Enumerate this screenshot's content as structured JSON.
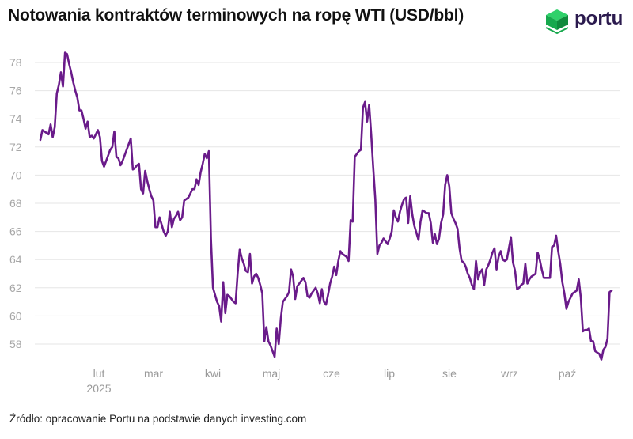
{
  "title": "Notowania kontraktów terminowych na ropę WTI (USD/bbl)",
  "brand": {
    "name": "portu",
    "icon": "green-isometric-cube-logo",
    "colors": [
      "#2fd16a",
      "#17a84d",
      "#0f8a3c"
    ]
  },
  "source_note": "Źródło: opracowanie Portu na podstawie danych investing.com",
  "chart_data": {
    "type": "line",
    "title": "Notowania kontraktów terminowych na ropę WTI (USD/bbl)",
    "xlabel": "",
    "ylabel": "",
    "ylim": [
      57,
      80
    ],
    "yticks": [
      58,
      60,
      62,
      64,
      66,
      68,
      70,
      72,
      74,
      76,
      78
    ],
    "grid": true,
    "line_color": "#6a1b8a",
    "x_tick_labels": [
      "lut",
      "mar",
      "kwi",
      "maj",
      "cze",
      "lip",
      "sie",
      "wrz",
      "paź"
    ],
    "x_year_label": "2025",
    "series": [
      {
        "values": [
          72.5,
          73.2,
          73.1,
          73.0,
          72.9,
          73.6,
          72.7,
          73.4,
          75.8,
          76.4,
          77.3,
          76.3,
          78.7,
          78.6,
          77.9,
          77.3,
          76.6,
          76.0,
          75.5,
          74.6,
          74.6,
          74.0,
          73.3,
          73.8,
          72.7,
          72.8,
          72.6,
          72.9,
          73.2,
          72.7,
          71.0,
          70.6,
          71.0,
          71.4,
          71.8,
          72.0,
          73.1,
          71.3,
          71.2,
          70.7,
          71.0,
          71.4,
          71.8,
          72.2,
          72.6,
          70.4,
          70.5,
          70.7,
          70.8,
          69.0,
          68.7,
          70.3,
          69.6,
          69.0,
          68.5,
          68.2,
          66.3,
          66.3,
          67.0,
          66.5,
          66.0,
          65.7,
          66.0,
          67.4,
          66.3,
          66.9,
          67.1,
          67.4,
          66.8,
          67.0,
          68.2,
          68.3,
          68.4,
          68.7,
          69.0,
          69.0,
          69.7,
          69.3,
          70.2,
          70.8,
          71.5,
          71.2,
          71.7,
          65.5,
          62.0,
          61.5,
          61.0,
          60.7,
          59.6,
          62.4,
          60.2,
          61.5,
          61.4,
          61.2,
          61.0,
          60.9,
          63.0,
          64.7,
          64.1,
          63.7,
          63.2,
          63.1,
          64.4,
          62.3,
          62.8,
          63.0,
          62.7,
          62.2,
          61.6,
          58.2,
          59.2,
          58.2,
          57.9,
          57.5,
          57.1,
          59.1,
          58.0,
          59.8,
          61.0,
          61.2,
          61.4,
          61.7,
          63.3,
          62.8,
          61.2,
          62.1,
          62.3,
          62.5,
          62.7,
          62.4,
          61.4,
          61.3,
          61.6,
          61.8,
          62.0,
          61.6,
          60.9,
          61.9,
          61.0,
          60.8,
          61.5,
          62.3,
          62.8,
          63.5,
          62.9,
          63.9,
          64.6,
          64.4,
          64.3,
          64.2,
          63.9,
          66.8,
          66.7,
          71.3,
          71.5,
          71.7,
          71.8,
          74.8,
          75.2,
          73.8,
          75.0,
          72.9,
          70.5,
          68.3,
          64.4,
          65.0,
          65.2,
          65.5,
          65.3,
          65.1,
          65.5,
          66.0,
          67.5,
          67.0,
          66.7,
          67.4,
          67.9,
          68.3,
          68.4,
          66.6,
          68.5,
          67.2,
          66.4,
          65.9,
          65.4,
          66.7,
          67.5,
          67.4,
          67.3,
          67.3,
          66.6,
          65.2,
          65.8,
          65.1,
          65.5,
          66.6,
          67.2,
          69.3,
          70.0,
          69.2,
          67.3,
          66.9,
          66.6,
          66.2,
          64.8,
          63.9,
          63.8,
          63.5,
          63.0,
          62.7,
          62.2,
          61.9,
          63.9,
          62.6,
          63.1,
          63.3,
          62.2,
          63.3,
          63.6,
          64.0,
          64.5,
          64.8,
          63.3,
          64.2,
          64.6,
          64.0,
          63.9,
          64.0,
          64.8,
          65.6,
          63.8,
          63.2,
          61.9,
          62.0,
          62.2,
          62.3,
          63.7,
          62.3,
          62.6,
          62.8,
          62.9,
          63.0,
          64.5,
          64.0,
          63.3,
          62.7,
          62.7,
          62.7,
          62.7,
          64.9,
          65.0,
          65.7,
          64.6,
          63.7,
          62.4,
          61.6,
          60.5,
          61.0,
          61.3,
          61.6,
          61.7,
          61.8,
          62.6,
          61.3,
          58.9,
          59.0,
          59.0,
          59.1,
          58.2,
          58.2,
          57.5,
          57.4,
          57.3,
          56.9,
          57.6,
          57.8,
          58.4,
          61.7,
          61.8
        ]
      }
    ]
  }
}
